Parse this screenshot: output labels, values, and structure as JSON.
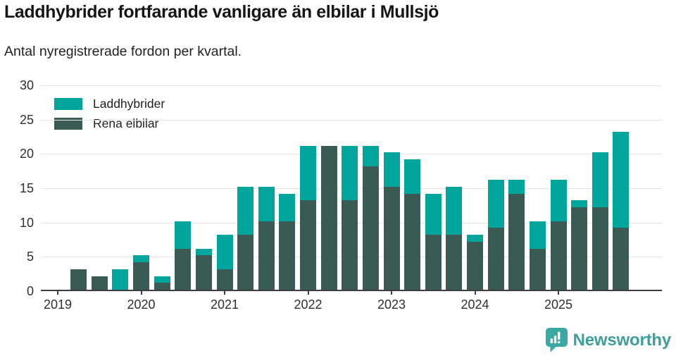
{
  "header": {
    "title": "Laddhybrider fortfarande vanligare än elbilar i Mullsjö",
    "subtitle": "Antal nyregistrerade fordon per kvartal."
  },
  "legend": [
    {
      "label": "Laddhybrider",
      "color": "#00a69c"
    },
    {
      "label": "Rena elbilar",
      "color": "#3a5b53"
    }
  ],
  "chart_data": {
    "type": "bar",
    "stacked": true,
    "title": "Laddhybrider fortfarande vanligare än elbilar i Mullsjö",
    "subtitle": "Antal nyregistrerade fordon per kvartal.",
    "xlabel": "",
    "ylabel": "",
    "ylim": [
      0,
      30
    ],
    "yticks": [
      0,
      5,
      10,
      15,
      20,
      25,
      30
    ],
    "grid": "horizontal",
    "legend_position": "top-left-inside",
    "categories": [
      "2019 Q1",
      "2019 Q2",
      "2019 Q3",
      "2019 Q4",
      "2020 Q1",
      "2020 Q2",
      "2020 Q3",
      "2020 Q4",
      "2021 Q1",
      "2021 Q2",
      "2021 Q3",
      "2021 Q4",
      "2022 Q1",
      "2022 Q2",
      "2022 Q3",
      "2022 Q4",
      "2023 Q1",
      "2023 Q2",
      "2023 Q3",
      "2023 Q4",
      "2024 Q1",
      "2024 Q2",
      "2024 Q3",
      "2024 Q4",
      "2025 Q1",
      "2025 Q2",
      "2025 Q3",
      "2025 Q4"
    ],
    "x_tick_labels": [
      "2019",
      "2020",
      "2021",
      "2022",
      "2023",
      "2024",
      "2025"
    ],
    "series": [
      {
        "name": "Laddhybrider",
        "color": "#00a69c",
        "stack_position": "top",
        "values": [
          0,
          0,
          0,
          3,
          1,
          1,
          4,
          1,
          5,
          7,
          5,
          4,
          8,
          0,
          8,
          3,
          5,
          5,
          6,
          7,
          1,
          7,
          2,
          4,
          6,
          1,
          8,
          14
        ]
      },
      {
        "name": "Rena elbilar",
        "color": "#3a5b53",
        "stack_position": "bottom",
        "values": [
          0,
          3,
          2,
          0,
          4,
          1,
          6,
          5,
          3,
          8,
          10,
          10,
          13,
          21,
          13,
          18,
          15,
          14,
          8,
          8,
          7,
          9,
          14,
          6,
          10,
          12,
          12,
          9
        ]
      }
    ],
    "stack_totals": [
      0,
      3,
      2,
      3,
      5,
      2,
      10,
      6,
      8,
      15,
      15,
      14,
      21,
      21,
      21,
      21,
      20,
      19,
      14,
      15,
      8,
      16,
      16,
      10,
      16,
      13,
      20,
      23
    ]
  },
  "footer": {
    "brand": "Newsworthy",
    "brand_color": "#3f9e99",
    "icon_color": "#3aa8a3",
    "icon": "newsworthy-speech-bubble-barchart-icon"
  }
}
